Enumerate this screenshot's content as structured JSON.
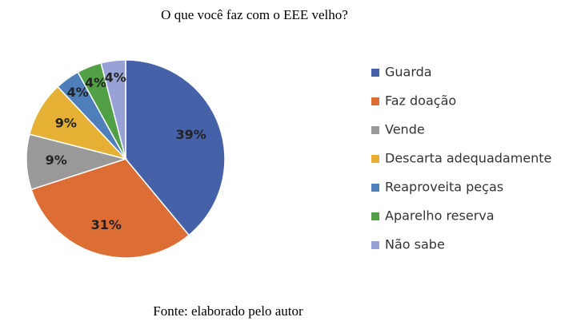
{
  "chart_data": {
    "type": "pie",
    "title": "O que você faz com o EEE velho?",
    "categories": [
      "Guarda",
      "Faz doação",
      "Vende",
      "Descarta adequadamente",
      "Reaproveita peças",
      "Aparelho reserva",
      "Não sabe"
    ],
    "values": [
      39,
      31,
      9,
      9,
      4,
      4,
      4
    ],
    "value_labels": [
      "39%",
      "31%",
      "9%",
      "9%",
      "4%",
      "4%",
      "4%"
    ],
    "colors": [
      "#4561a8",
      "#dc6d34",
      "#999999",
      "#e6b034",
      "#4f7fbb",
      "#52a046",
      "#98a2d6"
    ],
    "legend": "right",
    "source": "Fonte: elaborado pelo autor"
  }
}
